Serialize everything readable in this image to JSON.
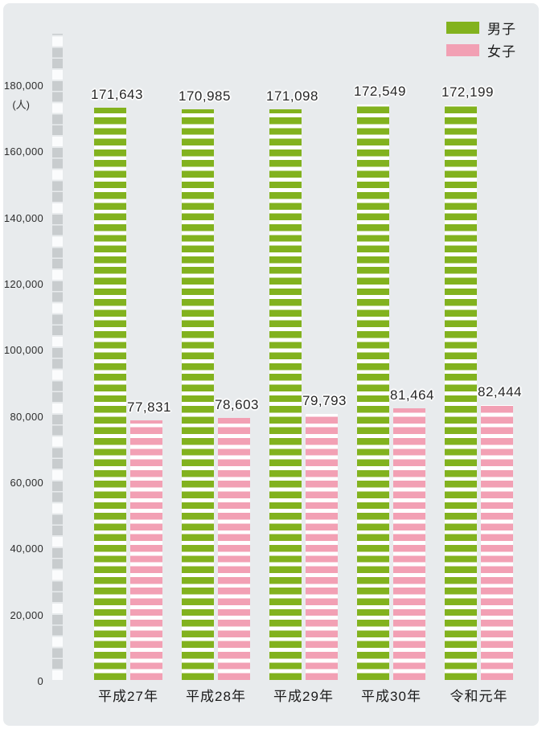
{
  "legend": [
    {
      "label": "男子",
      "color": "#82b21e"
    },
    {
      "label": "女子",
      "color": "#f2a0b4"
    }
  ],
  "chart_data": {
    "type": "bar",
    "title": "",
    "categories": [
      "平成27年",
      "平成28年",
      "平成29年",
      "平成30年",
      "令和元年"
    ],
    "series": [
      {
        "name": "男子",
        "color": "#82b21e",
        "values": [
          171643,
          170985,
          171098,
          172549,
          172199
        ],
        "display_values": [
          "171,643",
          "170,985",
          "171,098",
          "172,549",
          "172,199"
        ]
      },
      {
        "name": "女子",
        "color": "#f2a0b4",
        "values": [
          77831,
          78603,
          79793,
          81464,
          82444
        ],
        "display_values": [
          "77,831",
          "78,603",
          "79,793",
          "81,464",
          "82,444"
        ]
      }
    ],
    "ylabel_unit": "(人)",
    "ylim": [
      0,
      180000
    ],
    "ytick_labels": [
      "180,000",
      "160,000",
      "140,000",
      "120,000",
      "100,000",
      "80,000",
      "60,000",
      "40,000",
      "20,000",
      "0"
    ],
    "grid": "striped-axis-column",
    "legend_position": "top-right",
    "colors": {
      "background": "#e8ebed",
      "axis_block_gray": "#c8ccce",
      "axis_block_white": "#fbfcfd",
      "bar_gap_white": "#ffffff",
      "label_text": "#262626"
    }
  }
}
